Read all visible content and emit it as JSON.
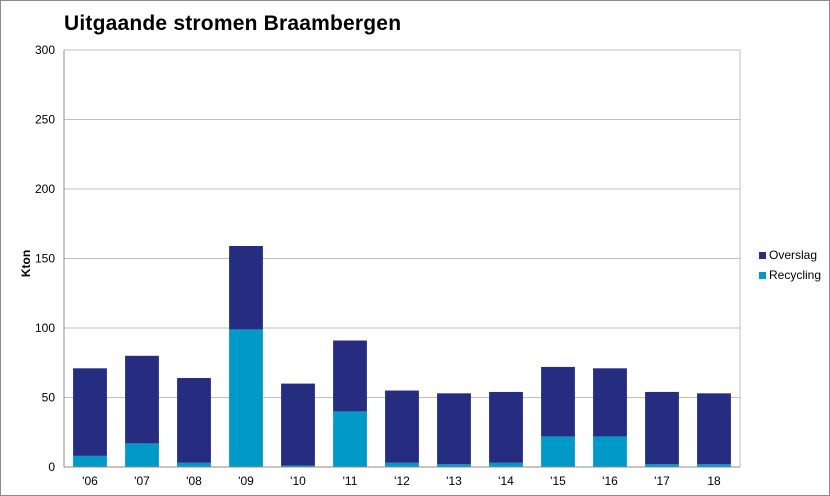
{
  "chart_data": {
    "type": "bar",
    "stacked": true,
    "title": "Uitgaande stromen Braambergen",
    "ylabel": "Kton",
    "xlabel": "",
    "ylim": [
      0,
      300
    ],
    "yticks": [
      0,
      50,
      100,
      150,
      200,
      250,
      300
    ],
    "grid": true,
    "legend_position": "right",
    "categories": [
      "'06",
      "'07",
      "'08",
      "'09",
      "'10",
      "'11",
      "'12",
      "'13",
      "'14",
      "'15",
      "'16",
      "'17",
      "18"
    ],
    "series": [
      {
        "name": "Recycling",
        "color": "#0099c8",
        "values": [
          8,
          17,
          3,
          99,
          1,
          40,
          3,
          2,
          3,
          22,
          22,
          2,
          2
        ]
      },
      {
        "name": "Overslag",
        "color": "#262c80",
        "values": [
          63,
          63,
          61,
          60,
          59,
          51,
          52,
          51,
          51,
          50,
          49,
          52,
          51
        ]
      }
    ],
    "legend_order": [
      "Overslag",
      "Recycling"
    ]
  }
}
